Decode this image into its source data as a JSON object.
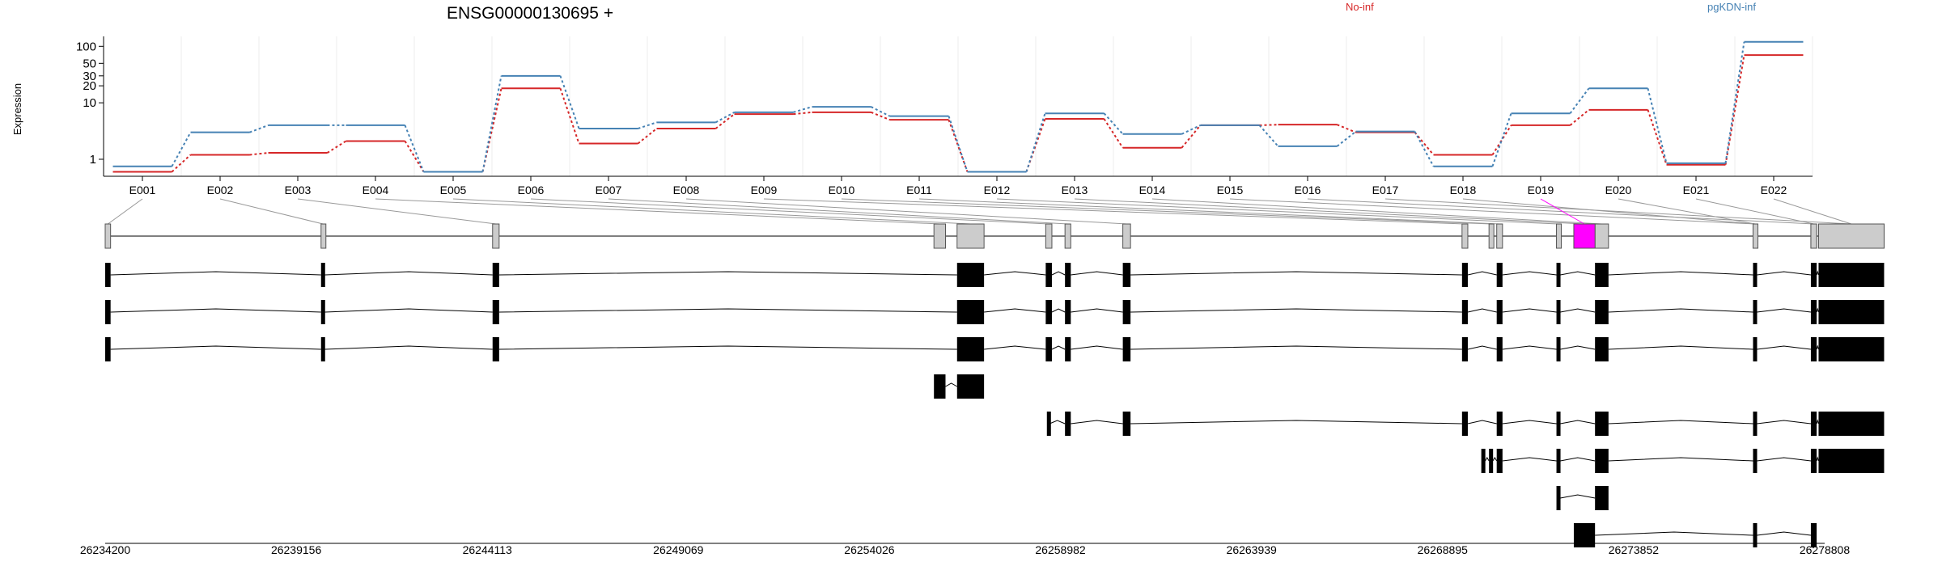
{
  "chart_data": {
    "type": "line",
    "title": "ENSG00000130695 +",
    "ylabel": "Expression",
    "yscale": "log",
    "ylim": [
      0.5,
      150
    ],
    "y_ticks": [
      1,
      10,
      20,
      30,
      50,
      100
    ],
    "y_tick_labels": [
      "1",
      "10",
      "20",
      "30",
      "50",
      "100"
    ],
    "categories": [
      "E001",
      "E002",
      "E003",
      "E004",
      "E005",
      "E006",
      "E007",
      "E008",
      "E009",
      "E010",
      "E011",
      "E012",
      "E013",
      "E014",
      "E015",
      "E016",
      "E017",
      "E018",
      "E019",
      "E020",
      "E021",
      "E022"
    ],
    "legend": [
      "No-inf",
      "pgKDN-inf"
    ],
    "legend_position": "top",
    "series": [
      {
        "name": "No-inf",
        "color": "#d62728",
        "values": [
          0.6,
          1.2,
          1.3,
          2.1,
          0.6,
          18,
          1.9,
          3.5,
          6.3,
          6.8,
          5.0,
          0.6,
          5.2,
          1.6,
          4.0,
          4.1,
          3.0,
          1.2,
          4.0,
          7.5,
          0.8,
          70
        ]
      },
      {
        "name": "pgKDN-inf",
        "color": "#4682b4",
        "values": [
          0.75,
          3.0,
          4.0,
          4.0,
          0.6,
          30,
          3.5,
          4.5,
          6.8,
          8.5,
          5.8,
          0.6,
          6.5,
          2.8,
          4.0,
          1.7,
          3.1,
          0.75,
          6.5,
          18,
          0.85,
          120
        ]
      }
    ],
    "genomic_axis": {
      "start": 26234200,
      "end": 26278808,
      "tick_labels": [
        "26234200",
        "26239156",
        "26244113",
        "26249069",
        "26254026",
        "26258982",
        "26263939",
        "26268895",
        "26273852",
        "26278808"
      ]
    },
    "gene_model": {
      "highlight_color": "#ff00ff",
      "highlighted_exon": "E019",
      "exons": [
        {
          "id": "E001",
          "start": 26234200,
          "end": 26234340
        },
        {
          "id": "E002",
          "start": 26239800,
          "end": 26239900
        },
        {
          "id": "E003",
          "start": 26244250,
          "end": 26244420
        },
        {
          "id": "E004",
          "start": 26255700,
          "end": 26256000
        },
        {
          "id": "E005",
          "start": 26256300,
          "end": 26257000
        },
        {
          "id": "E006",
          "start": 26258600,
          "end": 26258760
        },
        {
          "id": "E007",
          "start": 26259100,
          "end": 26259250
        },
        {
          "id": "E008",
          "start": 26260600,
          "end": 26260800
        },
        {
          "id": "E009",
          "start": 26269400,
          "end": 26269550
        },
        {
          "id": "E010",
          "start": 26270100,
          "end": 26270200
        },
        {
          "id": "E011",
          "start": 26270300,
          "end": 26270450
        },
        {
          "id": "E012",
          "start": 26271850,
          "end": 26271950
        },
        {
          "id": "E013",
          "start": 26272300,
          "end": 26272850
        },
        {
          "id": "E014",
          "start": 26272850,
          "end": 26273200
        },
        {
          "id": "E015",
          "start": 26276950,
          "end": 26277050
        },
        {
          "id": "E016",
          "start": 26278450,
          "end": 26278600
        },
        {
          "id": "E017",
          "start": 26278650,
          "end": 26280350
        },
        {
          "id": "E018",
          "start": 26276950,
          "end": 26277050
        },
        {
          "id": "E019",
          "start": 26272300,
          "end": 26272850
        },
        {
          "id": "E020",
          "start": 26276950,
          "end": 26277050
        },
        {
          "id": "E021",
          "start": 26278450,
          "end": 26278600
        },
        {
          "id": "E022",
          "start": 26278650,
          "end": 26280350
        }
      ],
      "transcripts": [
        {
          "segments": [
            [
              26234200,
              26234340
            ],
            [
              26239800,
              26239900
            ],
            [
              26244250,
              26244420
            ],
            [
              26256300,
              26257000
            ],
            [
              26258600,
              26258760
            ],
            [
              26259100,
              26259250
            ],
            [
              26260600,
              26260800
            ],
            [
              26269400,
              26269550
            ],
            [
              26270300,
              26270450
            ],
            [
              26271850,
              26271950
            ],
            [
              26272850,
              26273200
            ],
            [
              26276950,
              26277050
            ],
            [
              26278450,
              26278600
            ],
            [
              26278650,
              26280350
            ]
          ]
        },
        {
          "segments": [
            [
              26234200,
              26234340
            ],
            [
              26239800,
              26239900
            ],
            [
              26244250,
              26244420
            ],
            [
              26256300,
              26257000
            ],
            [
              26258600,
              26258760
            ],
            [
              26259100,
              26259250
            ],
            [
              26260600,
              26260800
            ],
            [
              26269400,
              26269550
            ],
            [
              26270300,
              26270450
            ],
            [
              26271850,
              26271950
            ],
            [
              26272850,
              26273200
            ],
            [
              26276950,
              26277050
            ],
            [
              26278450,
              26278600
            ],
            [
              26278650,
              26280350
            ]
          ]
        },
        {
          "segments": [
            [
              26234200,
              26234340
            ],
            [
              26239800,
              26239900
            ],
            [
              26244250,
              26244420
            ],
            [
              26256300,
              26257000
            ],
            [
              26258600,
              26258760
            ],
            [
              26259100,
              26259250
            ],
            [
              26260600,
              26260800
            ],
            [
              26269400,
              26269550
            ],
            [
              26270300,
              26270450
            ],
            [
              26271850,
              26271950
            ],
            [
              26272850,
              26273200
            ],
            [
              26276950,
              26277050
            ],
            [
              26278450,
              26278600
            ],
            [
              26278650,
              26280350
            ]
          ]
        },
        {
          "segments": [
            [
              26255700,
              26256000
            ],
            [
              26256300,
              26257000
            ]
          ]
        },
        {
          "segments": [
            [
              26258630,
              26258700
            ],
            [
              26259100,
              26259250
            ],
            [
              26260600,
              26260800
            ],
            [
              26269400,
              26269550
            ],
            [
              26270300,
              26270450
            ],
            [
              26271850,
              26271950
            ],
            [
              26272850,
              26273200
            ],
            [
              26276950,
              26277050
            ],
            [
              26278450,
              26278600
            ],
            [
              26278650,
              26280350
            ]
          ]
        },
        {
          "segments": [
            [
              26269900,
              26270000
            ],
            [
              26270100,
              26270200
            ],
            [
              26270300,
              26270450
            ],
            [
              26271850,
              26271950
            ],
            [
              26272850,
              26273200
            ],
            [
              26276950,
              26277050
            ],
            [
              26278450,
              26278600
            ],
            [
              26278650,
              26280350
            ]
          ]
        },
        {
          "segments": [
            [
              26271850,
              26271950
            ],
            [
              26272850,
              26273200
            ]
          ]
        },
        {
          "segments": [
            [
              26272300,
              26272850
            ],
            [
              26276950,
              26277050
            ],
            [
              26278450,
              26278600
            ]
          ]
        }
      ]
    }
  }
}
